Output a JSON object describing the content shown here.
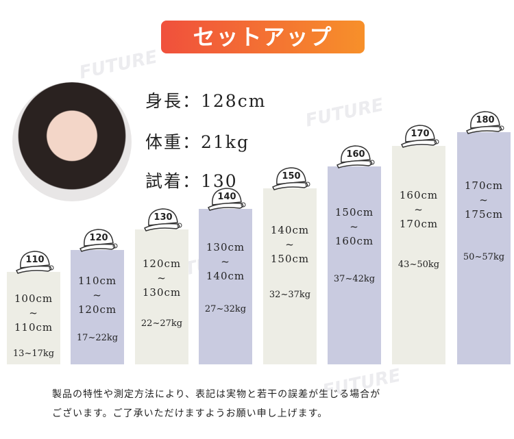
{
  "title": "セットアップ",
  "watermark": "FUTURE",
  "model": {
    "specs": [
      "身長：128cm",
      "体重：21kg",
      "試着：130"
    ]
  },
  "columns": [
    {
      "size": "110",
      "lines": [
        "100cm",
        "~",
        "110cm"
      ],
      "weight": "13~17kg"
    },
    {
      "size": "120",
      "lines": [
        "110cm",
        "~",
        "120cm"
      ],
      "weight": "17~22kg"
    },
    {
      "size": "130",
      "lines": [
        "120cm",
        "~",
        "130cm"
      ],
      "weight": "22~27kg"
    },
    {
      "size": "140",
      "lines": [
        "130cm",
        "~",
        "140cm"
      ],
      "weight": "27~32kg"
    },
    {
      "size": "150",
      "lines": [
        "140cm",
        "~",
        "150cm"
      ],
      "weight": "32~37kg"
    },
    {
      "size": "160",
      "lines": [
        "150cm",
        "~",
        "160cm"
      ],
      "weight": "37~42kg"
    },
    {
      "size": "170",
      "lines": [
        "160cm",
        "~",
        "170cm"
      ],
      "weight": "43~50kg"
    },
    {
      "size": "180",
      "lines": [
        "170cm",
        "~",
        "175cm"
      ],
      "weight": "50~57kg"
    }
  ],
  "note": [
    "製品の特性や測定方法により、表記は実物と若干の誤差が生じる場合が",
    "ございます。ご了承いただけますようお願い申し上げます。"
  ]
}
